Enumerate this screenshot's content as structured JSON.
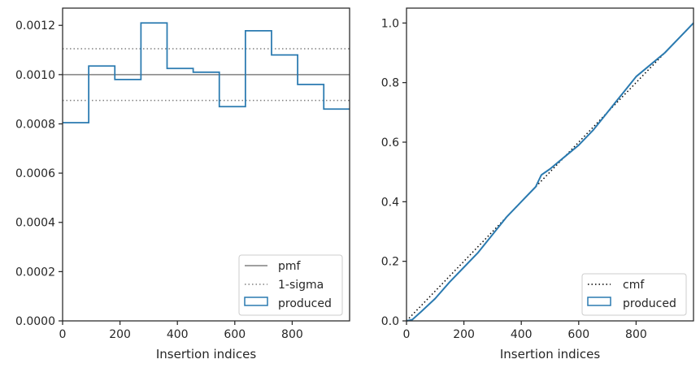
{
  "colors": {
    "produced": "#2a7ab0",
    "pmf": "#808080",
    "sigma": "#808080",
    "cmf": "#000000",
    "axes": "#262626"
  },
  "chart_data": [
    {
      "type": "histogram-step",
      "xlabel": "Insertion indices",
      "ylabel": "",
      "xlim": [
        0,
        1000
      ],
      "ylim": [
        0,
        0.00127
      ],
      "xticks": [
        0,
        200,
        400,
        600,
        800
      ],
      "xtick_labels": [
        "0",
        "200",
        "400",
        "600",
        "800"
      ],
      "yticks": [
        0,
        0.0002,
        0.0004,
        0.0006,
        0.0008,
        0.001,
        0.0012
      ],
      "ytick_labels": [
        "0.0000",
        "0.0002",
        "0.0004",
        "0.0006",
        "0.0008",
        "0.0010",
        "0.0012"
      ],
      "bin_edges": [
        0,
        91,
        182,
        273,
        364,
        455,
        546,
        637,
        728,
        819,
        910,
        1000
      ],
      "series": [
        {
          "name": "produced",
          "style": "step",
          "values": [
            0.000805,
            0.001035,
            0.00098,
            0.00121,
            0.001025,
            0.00101,
            0.00087,
            0.001178,
            0.00108,
            0.00096,
            0.00086
          ]
        }
      ],
      "reference_lines": [
        {
          "name": "pmf",
          "y": 0.001,
          "style": "solid"
        },
        {
          "name": "1-sigma",
          "y": 0.001105,
          "style": "dotted"
        },
        {
          "name": "1-sigma",
          "y": 0.000895,
          "style": "dotted"
        }
      ],
      "legend": {
        "location": "lower-right",
        "entries": [
          "pmf",
          "1-sigma",
          "produced"
        ]
      }
    },
    {
      "type": "line",
      "xlabel": "Insertion indices",
      "ylabel": "",
      "xlim": [
        0,
        1000
      ],
      "ylim": [
        0,
        1.05
      ],
      "xticks": [
        0,
        200,
        400,
        600,
        800
      ],
      "xtick_labels": [
        "0",
        "200",
        "400",
        "600",
        "800"
      ],
      "yticks": [
        0,
        0.2,
        0.4,
        0.6,
        0.8,
        1.0
      ],
      "ytick_labels": [
        "0.0",
        "0.2",
        "0.4",
        "0.6",
        "0.8",
        "1.0"
      ],
      "series": [
        {
          "name": "cmf",
          "style": "dotted",
          "x": [
            0,
            1000
          ],
          "y": [
            0,
            1.0
          ]
        },
        {
          "name": "produced",
          "style": "step",
          "x": [
            0,
            20,
            50,
            100,
            150,
            200,
            250,
            300,
            350,
            400,
            450,
            470,
            500,
            550,
            600,
            650,
            700,
            750,
            800,
            850,
            900,
            950,
            980,
            1000
          ],
          "y": [
            0,
            0.004,
            0.03,
            0.075,
            0.13,
            0.18,
            0.23,
            0.29,
            0.35,
            0.4,
            0.45,
            0.49,
            0.51,
            0.55,
            0.59,
            0.64,
            0.7,
            0.76,
            0.82,
            0.86,
            0.9,
            0.95,
            0.98,
            1.0
          ]
        }
      ],
      "legend": {
        "location": "lower-right",
        "entries": [
          "cmf",
          "produced"
        ]
      }
    }
  ]
}
